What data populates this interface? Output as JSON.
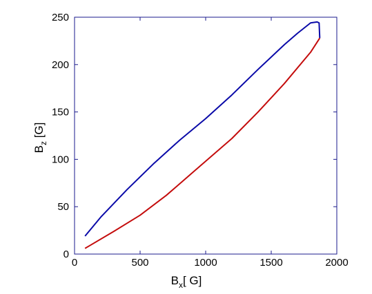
{
  "chart_data": {
    "type": "line",
    "xlabel": [
      "B",
      "x",
      "[ G]"
    ],
    "ylabel": [
      "B",
      "z",
      " [G]"
    ],
    "series": [
      {
        "color": "#0a0aa8",
        "x": [
          80,
          200,
          400,
          600,
          800,
          1000,
          1200,
          1400,
          1600,
          1700,
          1800,
          1850,
          1865,
          1870
        ],
        "values": [
          19,
          39,
          68,
          95,
          120,
          143,
          168,
          195,
          221,
          233,
          244,
          245,
          244,
          228
        ]
      },
      {
        "color": "#c40c0c",
        "x": [
          80,
          300,
          500,
          700,
          900,
          1000,
          1200,
          1400,
          1600,
          1800,
          1870
        ],
        "values": [
          6,
          24,
          41,
          62,
          86,
          98,
          122,
          150,
          180,
          213,
          228
        ]
      }
    ],
    "xlim": [
      0,
      2000
    ],
    "xticks": [
      0,
      500,
      1000,
      1500,
      2000
    ],
    "ylim": [
      0,
      250
    ],
    "yticks": [
      0,
      50,
      100,
      150,
      200,
      250
    ],
    "grid": false
  }
}
